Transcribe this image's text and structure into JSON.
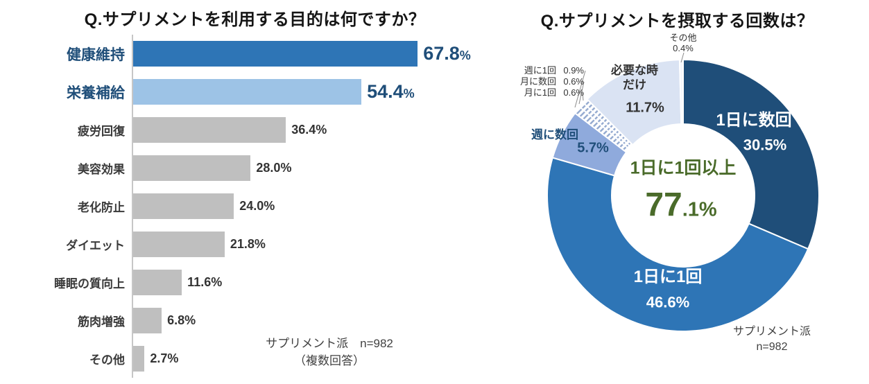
{
  "page": {
    "background": "#ffffff"
  },
  "chart_data": [
    {
      "type": "bar",
      "orientation": "horizontal",
      "title": "Q.サプリメントを利用する目的は何ですか？",
      "categories": [
        "健康維持",
        "栄養補給",
        "疲労回復",
        "美容効果",
        "老化防止",
        "ダイエット",
        "睡眠の質向上",
        "筋肉増強",
        "その他"
      ],
      "values": [
        67.8,
        54.4,
        36.4,
        28.0,
        24.0,
        21.8,
        11.6,
        6.8,
        2.7
      ],
      "unit": "%",
      "xlim": [
        0,
        70
      ],
      "grid": false,
      "bar_colors": [
        "#2e75b6",
        "#9dc3e6",
        "#bfbfbf",
        "#bfbfbf",
        "#bfbfbf",
        "#bfbfbf",
        "#bfbfbf",
        "#bfbfbf",
        "#bfbfbf"
      ],
      "highlight_count": 2,
      "highlight_text_color": "#1f4e79",
      "note_lines": [
        "サプリメント派　n=982",
        "（複数回答）"
      ]
    },
    {
      "type": "pie",
      "subtype": "donut",
      "title": "Q.サプリメントを摂取する回数は？",
      "labels": [
        "1日に数回",
        "1日に1回",
        "週に数回",
        "週に1回",
        "月に数回",
        "月に1回",
        "必要な時だけ",
        "その他"
      ],
      "values": [
        30.5,
        46.6,
        5.7,
        0.9,
        0.6,
        0.6,
        11.7,
        0.4
      ],
      "value_labels": [
        "30.5%",
        "46.6%",
        "5.7%",
        "0.9%",
        "0.6%",
        "0.6%",
        "11.7%",
        "0.4%"
      ],
      "colors": [
        "#1f4e79",
        "#2e75b6",
        "#8faadc",
        "#ffffff",
        "#ffffff",
        "#ffffff",
        "#dae3f3",
        "#f4f6fb"
      ],
      "center_label": "1日に1回以上",
      "center_value": "77.1%",
      "center_value_big": "77",
      "center_value_small": ".1%",
      "center_color": "#4a6b2a",
      "note_lines": [
        "サプリメント派",
        "n=982"
      ]
    }
  ]
}
